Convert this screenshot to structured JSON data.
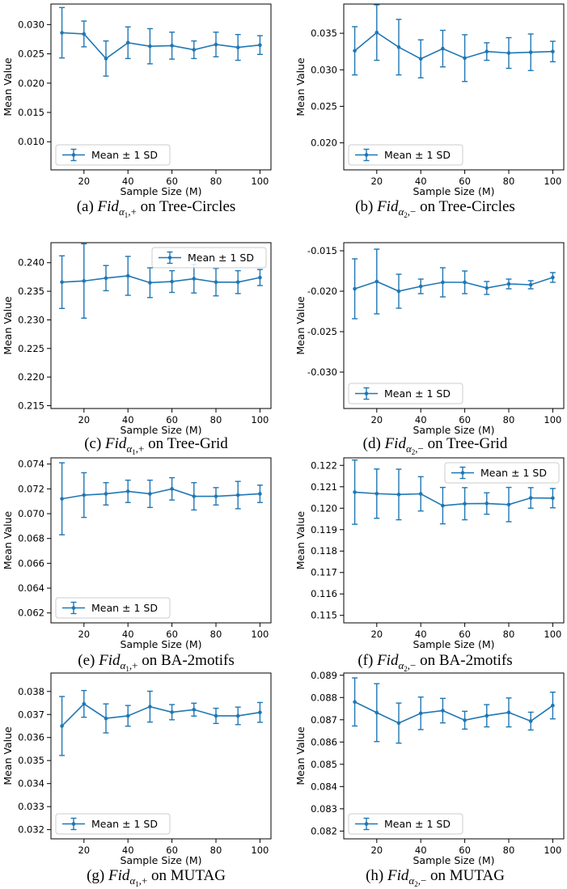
{
  "legend_label": "Mean ± 1 SD",
  "chart_data": [
    {
      "type": "line",
      "caption": {
        "tag": "(a)",
        "fid": "Fid",
        "sub1": "α",
        "sub2": "1",
        "sub3": ",+",
        "rest": "on Tree-Circles"
      },
      "xlabel": "Sample Size (M)",
      "ylabel": "Mean Value",
      "xlim": [
        5,
        105
      ],
      "xticks": [
        20,
        40,
        60,
        80,
        100
      ],
      "ylim": [
        0.0052,
        0.0335
      ],
      "yticks": [
        0.01,
        0.015,
        0.02,
        0.025,
        0.03
      ],
      "yfmt": 3,
      "legend": "lower-left",
      "grid": false,
      "x": [
        10,
        20,
        30,
        40,
        50,
        60,
        70,
        80,
        90,
        100
      ],
      "mean": [
        0.0286,
        0.0284,
        0.0242,
        0.0269,
        0.0263,
        0.0264,
        0.0257,
        0.0266,
        0.0261,
        0.0265
      ],
      "sd": [
        0.0043,
        0.0022,
        0.003,
        0.0027,
        0.003,
        0.0023,
        0.0015,
        0.0021,
        0.0022,
        0.0016
      ]
    },
    {
      "type": "line",
      "caption": {
        "tag": "(b)",
        "fid": "Fid",
        "sub1": "α",
        "sub2": "2",
        "sub3": ",−",
        "rest": "on Tree-Circles"
      },
      "xlabel": "Sample Size (M)",
      "ylabel": "Mean Value",
      "xlim": [
        5,
        105
      ],
      "xticks": [
        20,
        40,
        60,
        80,
        100
      ],
      "ylim": [
        0.0163,
        0.039
      ],
      "yticks": [
        0.02,
        0.025,
        0.03,
        0.035
      ],
      "yfmt": 3,
      "legend": "lower-left",
      "grid": false,
      "x": [
        10,
        20,
        30,
        40,
        50,
        60,
        70,
        80,
        90,
        100
      ],
      "mean": [
        0.0326,
        0.0351,
        0.0331,
        0.0315,
        0.0329,
        0.0316,
        0.0325,
        0.0323,
        0.0324,
        0.0325
      ],
      "sd": [
        0.0033,
        0.0038,
        0.0038,
        0.0026,
        0.0025,
        0.0032,
        0.0012,
        0.0021,
        0.0025,
        0.0014
      ]
    },
    {
      "type": "line",
      "caption": {
        "tag": "(c)",
        "fid": "Fid",
        "sub1": "α",
        "sub2": "1",
        "sub3": ",+",
        "rest": "on Tree-Grid"
      },
      "xlabel": "Sample Size (M)",
      "ylabel": "Mean Value",
      "xlim": [
        5,
        105
      ],
      "xticks": [
        20,
        40,
        60,
        80,
        100
      ],
      "ylim": [
        0.2145,
        0.2435
      ],
      "yticks": [
        0.215,
        0.22,
        0.225,
        0.23,
        0.235,
        0.24
      ],
      "yfmt": 3,
      "legend": "upper-right",
      "grid": false,
      "x": [
        10,
        20,
        30,
        40,
        50,
        60,
        70,
        80,
        90,
        100
      ],
      "mean": [
        0.2366,
        0.2368,
        0.2373,
        0.2377,
        0.2365,
        0.2367,
        0.2372,
        0.2366,
        0.2366,
        0.2374
      ],
      "sd": [
        0.0046,
        0.0065,
        0.0022,
        0.0034,
        0.0026,
        0.0019,
        0.0025,
        0.0024,
        0.002,
        0.0014
      ]
    },
    {
      "type": "line",
      "caption": {
        "tag": "(d)",
        "fid": "Fid",
        "sub1": "α",
        "sub2": "2",
        "sub3": ",−",
        "rest": "on Tree-Grid"
      },
      "xlabel": "Sample Size (M)",
      "ylabel": "Mean Value",
      "xlim": [
        5,
        105
      ],
      "xticks": [
        20,
        40,
        60,
        80,
        100
      ],
      "ylim": [
        -0.0345,
        -0.014
      ],
      "yticks": [
        -0.03,
        -0.025,
        -0.02,
        -0.015
      ],
      "yfmt": 3,
      "legend": "lower-left",
      "grid": false,
      "x": [
        10,
        20,
        30,
        40,
        50,
        60,
        70,
        80,
        90,
        100
      ],
      "mean": [
        -0.0197,
        -0.0188,
        -0.02,
        -0.0194,
        -0.0189,
        -0.0189,
        -0.0196,
        -0.0191,
        -0.0192,
        -0.0183
      ],
      "sd": [
        0.0037,
        0.004,
        0.0021,
        0.0009,
        0.0018,
        0.0014,
        0.0008,
        0.0006,
        0.0005,
        0.0006
      ]
    },
    {
      "type": "line",
      "caption": {
        "tag": "(e)",
        "fid": "Fid",
        "sub1": "α",
        "sub2": "1",
        "sub3": ",+",
        "rest": "on BA-2motifs"
      },
      "xlabel": "Sample Size (M)",
      "ylabel": "Mean Value",
      "xlim": [
        5,
        105
      ],
      "xticks": [
        20,
        40,
        60,
        80,
        100
      ],
      "ylim": [
        0.0612,
        0.0745
      ],
      "yticks": [
        0.062,
        0.064,
        0.066,
        0.068,
        0.07,
        0.072,
        0.074
      ],
      "yfmt": 3,
      "legend": "lower-left",
      "grid": false,
      "x": [
        10,
        20,
        30,
        40,
        50,
        60,
        70,
        80,
        90,
        100
      ],
      "mean": [
        0.0712,
        0.0715,
        0.0716,
        0.0718,
        0.0716,
        0.072,
        0.0714,
        0.0714,
        0.0715,
        0.0716
      ],
      "sd": [
        0.0029,
        0.0018,
        0.0009,
        0.0009,
        0.0011,
        0.0009,
        0.0011,
        0.0007,
        0.0011,
        0.0007
      ]
    },
    {
      "type": "line",
      "caption": {
        "tag": "(f)",
        "fid": "Fid",
        "sub1": "α",
        "sub2": "2",
        "sub3": ",−",
        "rest": "on BA-2motifs"
      },
      "xlabel": "Sample Size (M)",
      "ylabel": "Mean Value",
      "xlim": [
        5,
        105
      ],
      "xticks": [
        20,
        40,
        60,
        80,
        100
      ],
      "ylim": [
        0.11465,
        0.12235
      ],
      "yticks": [
        0.115,
        0.116,
        0.117,
        0.118,
        0.119,
        0.12,
        0.121,
        0.122
      ],
      "yfmt": 3,
      "legend": "upper-right",
      "grid": false,
      "x": [
        10,
        20,
        30,
        40,
        50,
        60,
        70,
        80,
        90,
        100
      ],
      "mean": [
        0.12075,
        0.12068,
        0.12064,
        0.12067,
        0.12012,
        0.12021,
        0.12022,
        0.12017,
        0.12048,
        0.12047
      ],
      "sd": [
        0.0015,
        0.00115,
        0.00118,
        0.0008,
        0.00085,
        0.00075,
        0.0005,
        0.0008,
        0.00048,
        0.00045
      ]
    },
    {
      "type": "line",
      "caption": {
        "tag": "(g)",
        "fid": "Fid",
        "sub1": "α",
        "sub2": "1",
        "sub3": ",+",
        "rest": "on MUTAG"
      },
      "xlabel": "Sample Size (M)",
      "ylabel": "Mean Value",
      "xlim": [
        5,
        105
      ],
      "xticks": [
        20,
        40,
        60,
        80,
        100
      ],
      "ylim": [
        0.0316,
        0.0388
      ],
      "yticks": [
        0.032,
        0.033,
        0.034,
        0.035,
        0.036,
        0.037,
        0.038
      ],
      "yfmt": 3,
      "legend": "lower-left",
      "grid": false,
      "x": [
        10,
        20,
        30,
        40,
        50,
        60,
        70,
        80,
        90,
        100
      ],
      "mean": [
        0.0365,
        0.03746,
        0.03683,
        0.03694,
        0.03734,
        0.0371,
        0.03721,
        0.03694,
        0.03694,
        0.03709
      ],
      "sd": [
        0.00128,
        0.00058,
        0.00063,
        0.00045,
        0.00067,
        0.00033,
        0.00028,
        0.00033,
        0.00038,
        0.00043
      ]
    },
    {
      "type": "line",
      "caption": {
        "tag": "(h)",
        "fid": "Fid",
        "sub1": "α",
        "sub2": "2",
        "sub3": ",−",
        "rest": "on MUTAG"
      },
      "xlabel": "Sample Size (M)",
      "ylabel": "Mean Value",
      "xlim": [
        5,
        105
      ],
      "xticks": [
        20,
        40,
        60,
        80,
        100
      ],
      "ylim": [
        0.08165,
        0.0891
      ],
      "yticks": [
        0.082,
        0.083,
        0.084,
        0.085,
        0.086,
        0.087,
        0.088,
        0.089
      ],
      "yfmt": 3,
      "legend": "lower-left",
      "grid": false,
      "x": [
        10,
        20,
        30,
        40,
        50,
        60,
        70,
        80,
        90,
        100
      ],
      "mean": [
        0.0878,
        0.08732,
        0.08685,
        0.08729,
        0.08741,
        0.08698,
        0.08718,
        0.08733,
        0.08694,
        0.08764
      ],
      "sd": [
        0.00108,
        0.0013,
        0.0009,
        0.00073,
        0.00055,
        0.0004,
        0.0005,
        0.00065,
        0.0004,
        0.0006
      ]
    }
  ]
}
